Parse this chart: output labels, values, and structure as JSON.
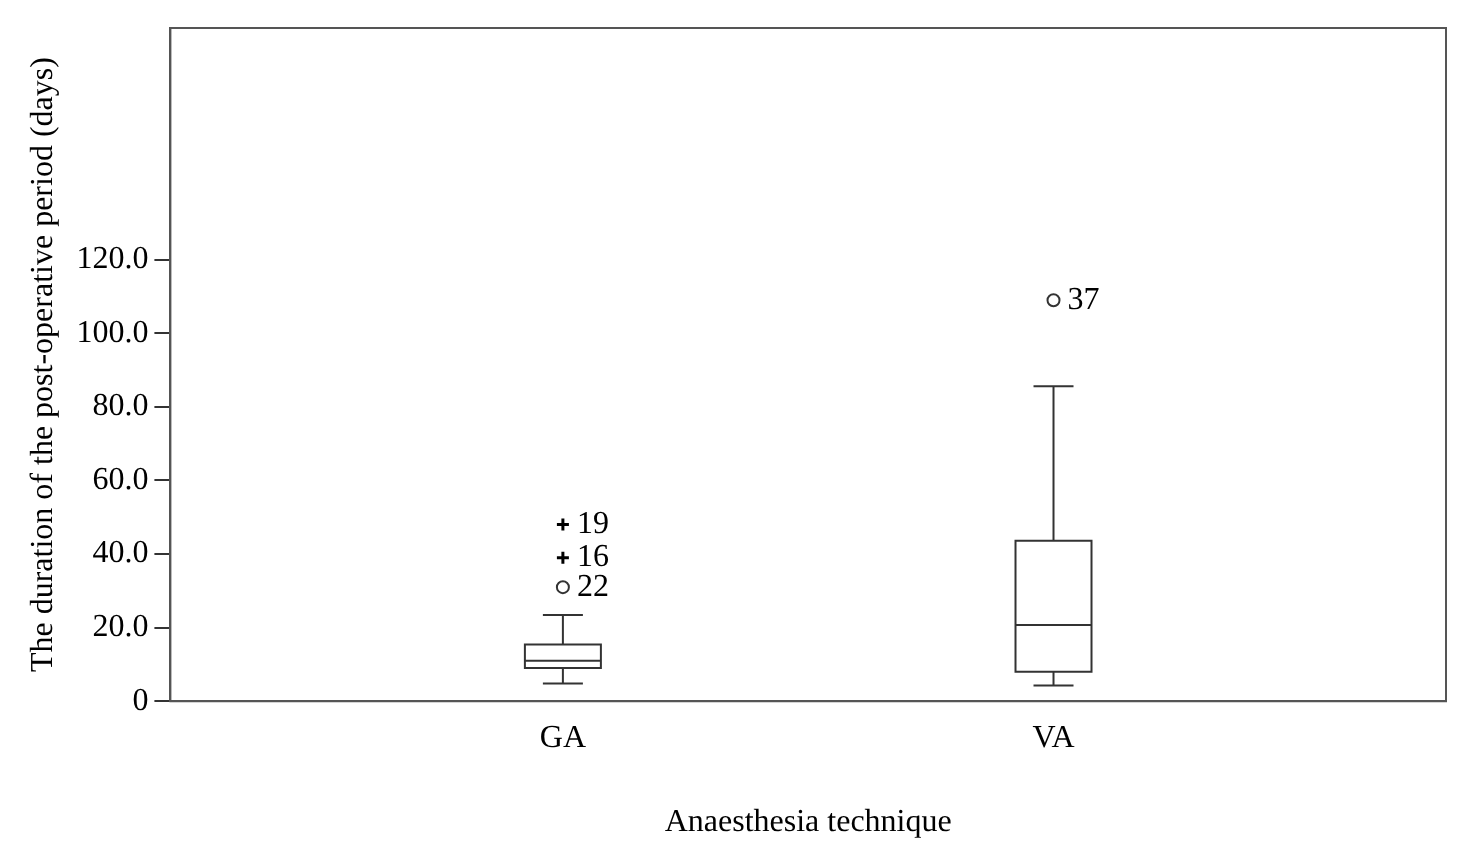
{
  "chart_data": {
    "type": "box",
    "categories": [
      "GA",
      "VA"
    ],
    "boxes": [
      {
        "low": 4.8,
        "q1": 9,
        "median": 11,
        "q3": 15.4,
        "high": 23.4
      },
      {
        "low": 4.3,
        "q1": 8,
        "median": 20.7,
        "q3": 43.6,
        "high": 85.6
      }
    ],
    "series": [
      {
        "type": "scatter",
        "marker": "cross",
        "color": "#000000",
        "x": [
          "GA",
          "GA"
        ],
        "values": [
          48,
          39
        ]
      },
      {
        "type": "scatter",
        "marker": "circle",
        "color": "#333333",
        "x": [
          "GA",
          "VA"
        ],
        "values": [
          31,
          109
        ]
      }
    ],
    "xlabel": "Anaesthesia technique",
    "ylabel": "The duration of the post-operative period (days)",
    "ylim": [
      0,
      183
    ],
    "yticks": [
      {
        "value": 0,
        "label": "0"
      },
      {
        "value": 20,
        "label": "20.0"
      },
      {
        "value": 40,
        "label": "40.0"
      },
      {
        "value": 60,
        "label": "60.0"
      },
      {
        "value": 80,
        "label": "80.0"
      },
      {
        "value": 100,
        "label": "100.0"
      },
      {
        "value": 120,
        "label": "120.0"
      }
    ],
    "annotations": [
      {
        "text": "19",
        "x": "GA",
        "y": 48
      },
      {
        "text": "16",
        "x": "GA",
        "y": 39
      },
      {
        "text": "22",
        "x": "GA",
        "y": 31
      },
      {
        "text": "37",
        "x": "VA",
        "y": 109
      }
    ],
    "grid": false,
    "legend": false
  }
}
